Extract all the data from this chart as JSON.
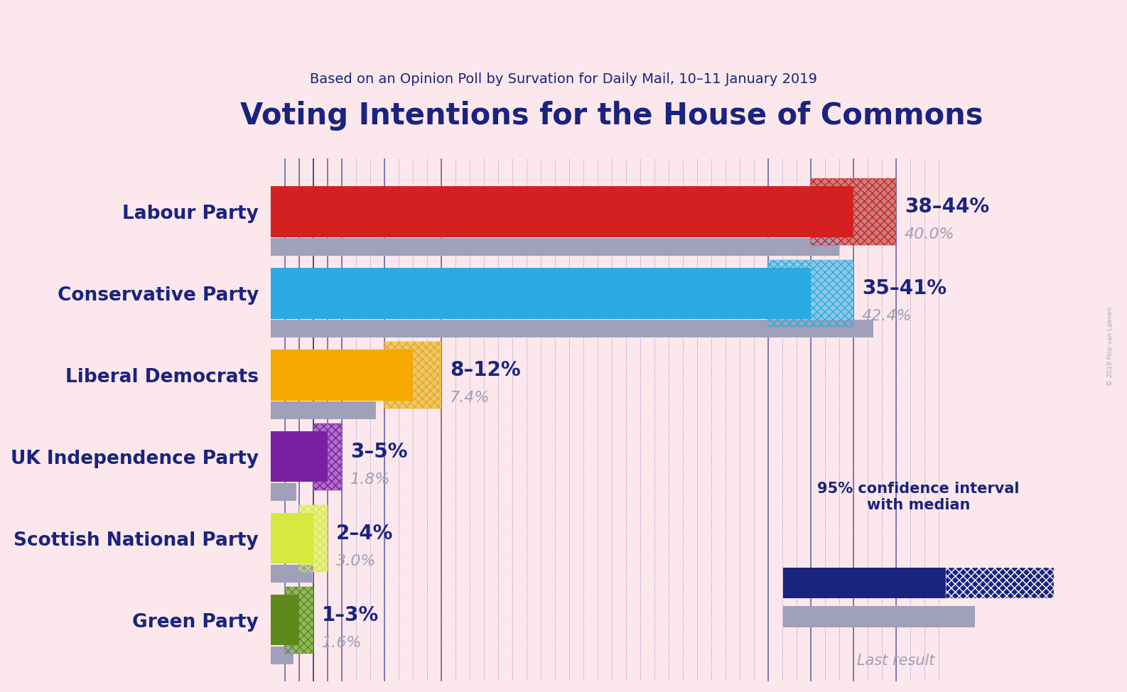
{
  "title": "Voting Intentions for the House of Commons",
  "subtitle": "Based on an Opinion Poll by Survation for Daily Mail, 10–11 January 2019",
  "background_color": "#fce8ec",
  "parties": [
    {
      "name": "Labour Party",
      "median": 41.0,
      "ci_low": 38,
      "ci_high": 44,
      "last_result": 40.0,
      "color": "#d42020",
      "color_light": "#c88080",
      "range_label": "38–44%",
      "last_label": "40.0%"
    },
    {
      "name": "Conservative Party",
      "median": 38.0,
      "ci_low": 35,
      "ci_high": 41,
      "last_result": 42.4,
      "color": "#29abe2",
      "color_light": "#90c8e0",
      "range_label": "35–41%",
      "last_label": "42.4%"
    },
    {
      "name": "Liberal Democrats",
      "median": 10.0,
      "ci_low": 8,
      "ci_high": 12,
      "last_result": 7.4,
      "color": "#f5a800",
      "color_light": "#e8c878",
      "range_label": "8–12%",
      "last_label": "7.4%"
    },
    {
      "name": "UK Independence Party",
      "median": 4.0,
      "ci_low": 3,
      "ci_high": 5,
      "last_result": 1.8,
      "color": "#7b1fa2",
      "color_light": "#b070c8",
      "range_label": "3–5%",
      "last_label": "1.8%"
    },
    {
      "name": "Scottish National Party",
      "median": 3.0,
      "ci_low": 2,
      "ci_high": 4,
      "last_result": 3.0,
      "color": "#d8e840",
      "color_light": "#e8f090",
      "range_label": "2–4%",
      "last_label": "3.0%"
    },
    {
      "name": "Green Party",
      "median": 2.0,
      "ci_low": 1,
      "ci_high": 3,
      "last_result": 1.6,
      "color": "#5d8a1a",
      "color_light": "#90b860",
      "range_label": "1–3%",
      "last_label": "1.6%"
    }
  ],
  "xlim": [
    0,
    48
  ],
  "title_fontsize": 30,
  "subtitle_fontsize": 14,
  "label_fontsize": 19,
  "annotation_fontsize": 20,
  "subann_fontsize": 16,
  "legend_fontsize": 15,
  "title_color": "#1a237e",
  "dotted_line_color": "#1a237e",
  "last_result_color": "#a0a0b8",
  "legend_bar_color": "#1a237e",
  "watermark": "© 2019 Filip van Laenen"
}
